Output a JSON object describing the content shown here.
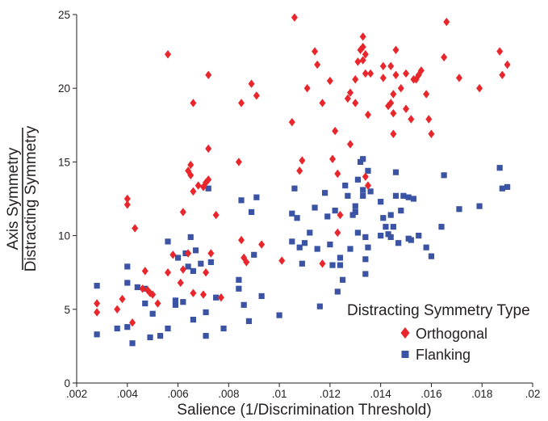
{
  "chart_data": {
    "type": "scatter",
    "title": "",
    "xlabel": "Salience (1/Discrimination Threshold)",
    "ylabel": {
      "numerator": "Axis Symmetry",
      "denominator": "Distracting Symmetry"
    },
    "xlim": [
      0.002,
      0.02
    ],
    "ylim": [
      0,
      25
    ],
    "x_ticks": [
      0.002,
      0.004,
      0.006,
      0.008,
      0.01,
      0.012,
      0.014,
      0.016,
      0.018,
      0.02
    ],
    "x_tick_labels": [
      ".002",
      ".004",
      ".006",
      ".008",
      ".01",
      ".012",
      ".014",
      ".016",
      ".018",
      ".02"
    ],
    "y_ticks": [
      0,
      5,
      10,
      15,
      20,
      25
    ],
    "y_tick_labels": [
      "0",
      "5",
      "10",
      "15",
      "20",
      "25"
    ],
    "grid": false,
    "legend": {
      "title": "Distracting Symmetry Type",
      "position": "bottom-right"
    },
    "series": [
      {
        "name": "Orthogonal",
        "marker": "diamond",
        "color": "#e8262b",
        "points": [
          [
            0.0028,
            5.4
          ],
          [
            0.0028,
            4.8
          ],
          [
            0.0036,
            5.0
          ],
          [
            0.0038,
            5.7
          ],
          [
            0.004,
            12.5
          ],
          [
            0.004,
            12.1
          ],
          [
            0.0042,
            4.1
          ],
          [
            0.0043,
            10.5
          ],
          [
            0.0046,
            6.4
          ],
          [
            0.0047,
            7.6
          ],
          [
            0.0048,
            6.3
          ],
          [
            0.0049,
            6.1
          ],
          [
            0.005,
            6.0
          ],
          [
            0.0052,
            5.4
          ],
          [
            0.0056,
            7.5
          ],
          [
            0.0056,
            22.3
          ],
          [
            0.0058,
            8.7
          ],
          [
            0.0061,
            6.8
          ],
          [
            0.0062,
            11.6
          ],
          [
            0.0062,
            7.7
          ],
          [
            0.0064,
            8.8
          ],
          [
            0.0064,
            14.4
          ],
          [
            0.0065,
            14.8
          ],
          [
            0.0065,
            14.1
          ],
          [
            0.0066,
            13.0
          ],
          [
            0.0066,
            19.0
          ],
          [
            0.0066,
            6.1
          ],
          [
            0.0068,
            13.4
          ],
          [
            0.007,
            13.3
          ],
          [
            0.007,
            6.0
          ],
          [
            0.0071,
            7.5
          ],
          [
            0.0071,
            13.6
          ],
          [
            0.0072,
            13.8
          ],
          [
            0.0072,
            20.9
          ],
          [
            0.0072,
            15.9
          ],
          [
            0.0073,
            8.8
          ],
          [
            0.0075,
            11.4
          ],
          [
            0.0077,
            5.8
          ],
          [
            0.0084,
            15.0
          ],
          [
            0.0085,
            19.0
          ],
          [
            0.0085,
            9.7
          ],
          [
            0.0086,
            8.5
          ],
          [
            0.0087,
            8.2
          ],
          [
            0.0089,
            20.3
          ],
          [
            0.0091,
            19.5
          ],
          [
            0.0093,
            9.4
          ],
          [
            0.0101,
            8.3
          ],
          [
            0.0105,
            17.7
          ],
          [
            0.0106,
            24.8
          ],
          [
            0.0108,
            14.4
          ],
          [
            0.0109,
            15.1
          ],
          [
            0.0111,
            20.0
          ],
          [
            0.0114,
            22.5
          ],
          [
            0.0115,
            21.6
          ],
          [
            0.0117,
            8.1
          ],
          [
            0.0117,
            19.0
          ],
          [
            0.012,
            20.5
          ],
          [
            0.0121,
            15.2
          ],
          [
            0.0122,
            17.1
          ],
          [
            0.0123,
            14.2
          ],
          [
            0.0123,
            10.2
          ],
          [
            0.0124,
            11.4
          ],
          [
            0.0127,
            19.3
          ],
          [
            0.0128,
            19.7
          ],
          [
            0.0128,
            16.2
          ],
          [
            0.013,
            20.6
          ],
          [
            0.013,
            19.0
          ],
          [
            0.0131,
            21.8
          ],
          [
            0.0132,
            22.6
          ],
          [
            0.0133,
            21.9
          ],
          [
            0.0133,
            23.5
          ],
          [
            0.0133,
            22.8
          ],
          [
            0.0134,
            22.3
          ],
          [
            0.0134,
            21.0
          ],
          [
            0.0134,
            14.0
          ],
          [
            0.0135,
            13.4
          ],
          [
            0.0135,
            18.2
          ],
          [
            0.0136,
            21.0
          ],
          [
            0.0141,
            21.5
          ],
          [
            0.0141,
            20.7
          ],
          [
            0.0143,
            18.8
          ],
          [
            0.0144,
            19.0
          ],
          [
            0.0144,
            21.5
          ],
          [
            0.0145,
            18.3
          ],
          [
            0.0145,
            16.9
          ],
          [
            0.0145,
            19.6
          ],
          [
            0.0146,
            20.9
          ],
          [
            0.0146,
            22.6
          ],
          [
            0.0148,
            20.0
          ],
          [
            0.015,
            18.6
          ],
          [
            0.015,
            21.0
          ],
          [
            0.0152,
            17.9
          ],
          [
            0.0153,
            20.6
          ],
          [
            0.0154,
            20.6
          ],
          [
            0.0155,
            20.9
          ],
          [
            0.0156,
            21.2
          ],
          [
            0.0158,
            19.6
          ],
          [
            0.0159,
            17.9
          ],
          [
            0.016,
            16.9
          ],
          [
            0.0165,
            22.1
          ],
          [
            0.0166,
            24.5
          ],
          [
            0.0171,
            20.7
          ],
          [
            0.0179,
            20.0
          ],
          [
            0.0187,
            22.5
          ],
          [
            0.0188,
            20.9
          ],
          [
            0.019,
            21.6
          ]
        ]
      },
      {
        "name": "Flanking",
        "marker": "square",
        "color": "#3b53a4",
        "points": [
          [
            0.0028,
            6.6
          ],
          [
            0.0028,
            3.3
          ],
          [
            0.0036,
            3.7
          ],
          [
            0.004,
            7.9
          ],
          [
            0.004,
            6.8
          ],
          [
            0.004,
            3.8
          ],
          [
            0.0042,
            2.7
          ],
          [
            0.0044,
            6.5
          ],
          [
            0.0047,
            6.4
          ],
          [
            0.0047,
            5.4
          ],
          [
            0.0049,
            3.1
          ],
          [
            0.005,
            4.7
          ],
          [
            0.0053,
            3.2
          ],
          [
            0.0056,
            9.6
          ],
          [
            0.0056,
            3.7
          ],
          [
            0.0059,
            5.3
          ],
          [
            0.0059,
            5.6
          ],
          [
            0.006,
            8.5
          ],
          [
            0.0062,
            5.5
          ],
          [
            0.0063,
            8.8
          ],
          [
            0.0064,
            7.9
          ],
          [
            0.0065,
            9.9
          ],
          [
            0.0066,
            7.6
          ],
          [
            0.0066,
            4.3
          ],
          [
            0.0067,
            9.0
          ],
          [
            0.0069,
            8.1
          ],
          [
            0.0071,
            3.2
          ],
          [
            0.0071,
            4.8
          ],
          [
            0.0072,
            13.2
          ],
          [
            0.0073,
            8.2
          ],
          [
            0.0075,
            5.8
          ],
          [
            0.0078,
            3.7
          ],
          [
            0.0084,
            7.0
          ],
          [
            0.0084,
            6.4
          ],
          [
            0.0085,
            12.4
          ],
          [
            0.0086,
            5.3
          ],
          [
            0.0088,
            4.2
          ],
          [
            0.0089,
            11.6
          ],
          [
            0.009,
            8.7
          ],
          [
            0.0091,
            12.6
          ],
          [
            0.0093,
            5.9
          ],
          [
            0.01,
            4.6
          ],
          [
            0.0105,
            9.6
          ],
          [
            0.0105,
            11.5
          ],
          [
            0.0106,
            13.2
          ],
          [
            0.0107,
            11.2
          ],
          [
            0.0108,
            9.2
          ],
          [
            0.0109,
            8.1
          ],
          [
            0.011,
            9.5
          ],
          [
            0.0112,
            10.2
          ],
          [
            0.0114,
            11.9
          ],
          [
            0.0115,
            9.1
          ],
          [
            0.0116,
            5.2
          ],
          [
            0.0118,
            12.9
          ],
          [
            0.0119,
            11.3
          ],
          [
            0.012,
            9.4
          ],
          [
            0.0121,
            8.0
          ],
          [
            0.0122,
            11.7
          ],
          [
            0.0123,
            6.2
          ],
          [
            0.0124,
            8.0
          ],
          [
            0.0124,
            8.5
          ],
          [
            0.0125,
            7.0
          ],
          [
            0.0126,
            13.4
          ],
          [
            0.0127,
            12.7
          ],
          [
            0.0128,
            9.1
          ],
          [
            0.0129,
            11.4
          ],
          [
            0.013,
            11.6
          ],
          [
            0.013,
            12.0
          ],
          [
            0.0131,
            10.2
          ],
          [
            0.0131,
            13.8
          ],
          [
            0.0132,
            15.0
          ],
          [
            0.0133,
            12.7
          ],
          [
            0.0133,
            13.1
          ],
          [
            0.0133,
            15.2
          ],
          [
            0.0134,
            9.9
          ],
          [
            0.0134,
            8.4
          ],
          [
            0.0134,
            7.4
          ],
          [
            0.0135,
            9.2
          ],
          [
            0.0135,
            14.4
          ],
          [
            0.0136,
            13.0
          ],
          [
            0.014,
            10.0
          ],
          [
            0.014,
            12.3
          ],
          [
            0.0141,
            11.2
          ],
          [
            0.0142,
            10.6
          ],
          [
            0.0143,
            10.1
          ],
          [
            0.0144,
            9.9
          ],
          [
            0.0144,
            11.4
          ],
          [
            0.0145,
            10.6
          ],
          [
            0.0146,
            12.7
          ],
          [
            0.0146,
            14.3
          ],
          [
            0.0147,
            9.5
          ],
          [
            0.0148,
            11.7
          ],
          [
            0.0149,
            12.7
          ],
          [
            0.0151,
            12.6
          ],
          [
            0.0151,
            9.8
          ],
          [
            0.0152,
            9.7
          ],
          [
            0.0153,
            12.5
          ],
          [
            0.0155,
            10.0
          ],
          [
            0.0158,
            9.2
          ],
          [
            0.016,
            8.6
          ],
          [
            0.0164,
            10.6
          ],
          [
            0.0165,
            14.1
          ],
          [
            0.0171,
            11.8
          ],
          [
            0.0179,
            12.0
          ],
          [
            0.0187,
            14.6
          ],
          [
            0.0188,
            13.2
          ],
          [
            0.019,
            13.3
          ]
        ]
      }
    ]
  }
}
